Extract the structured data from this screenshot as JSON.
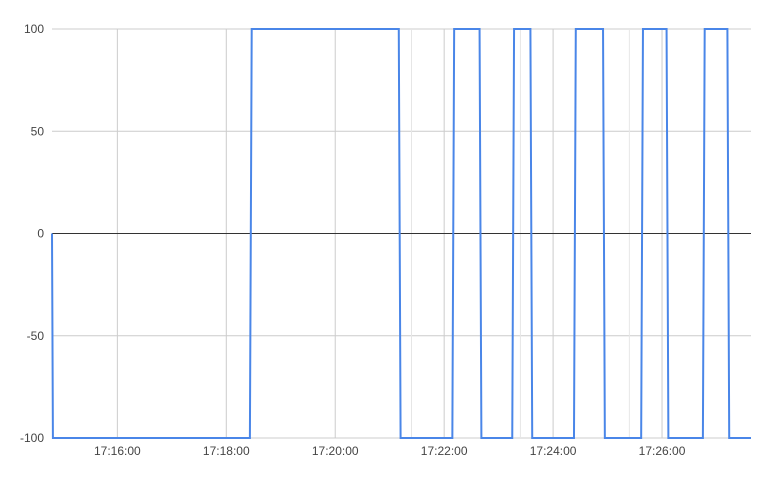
{
  "chart_data": {
    "type": "line",
    "title": "",
    "xlabel": "",
    "ylabel": "",
    "x_axis": {
      "min": "17:14:48",
      "max": "17:27:38",
      "tick_labels": [
        "17:16:00",
        "17:18:00",
        "17:20:00",
        "17:22:00",
        "17:24:00",
        "17:26:00"
      ],
      "tick_values": [
        "17:16:00",
        "17:18:00",
        "17:20:00",
        "17:22:00",
        "17:24:00",
        "17:26:00"
      ],
      "minor_gridlines": [
        "17:22:00",
        "17:24:00",
        "17:26:00"
      ],
      "grid": true
    },
    "y_axis": {
      "min": -100,
      "max": 100,
      "tick_labels": [
        "100",
        "50",
        "0",
        "-50",
        "-100"
      ],
      "tick_values": [
        100,
        50,
        0,
        -50,
        -100
      ],
      "grid": true,
      "baseline": 0
    },
    "series": [
      {
        "color": "#4a86e8",
        "points": [
          [
            "17:14:48",
            0
          ],
          [
            "17:14:49",
            -100
          ],
          [
            "17:18:26",
            -100
          ],
          [
            "17:18:28",
            100
          ],
          [
            "17:21:10",
            100
          ],
          [
            "17:21:12",
            -100
          ],
          [
            "17:22:09",
            -100
          ],
          [
            "17:22:11",
            100
          ],
          [
            "17:22:39",
            100
          ],
          [
            "17:22:41",
            -100
          ],
          [
            "17:23:15",
            -100
          ],
          [
            "17:23:17",
            100
          ],
          [
            "17:23:35",
            100
          ],
          [
            "17:23:37",
            -100
          ],
          [
            "17:24:23",
            -100
          ],
          [
            "17:24:25",
            100
          ],
          [
            "17:24:55",
            100
          ],
          [
            "17:24:57",
            -100
          ],
          [
            "17:25:37",
            -100
          ],
          [
            "17:25:39",
            100
          ],
          [
            "17:26:05",
            100
          ],
          [
            "17:26:07",
            -100
          ],
          [
            "17:26:45",
            -100
          ],
          [
            "17:26:47",
            100
          ],
          [
            "17:27:12",
            100
          ],
          [
            "17:27:14",
            -100
          ],
          [
            "17:27:38",
            -100
          ]
        ]
      }
    ]
  }
}
